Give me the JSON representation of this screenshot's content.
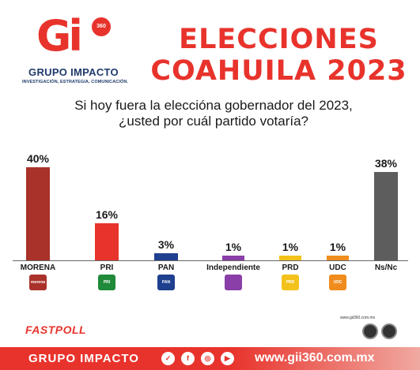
{
  "header": {
    "logo_text": "Gi",
    "logo_badge": "360",
    "logo_name": "GRUPO IMPACTO",
    "logo_tagline": "INVESTIGACIÓN, ESTRATEGIA, COMUNICACIÓN.",
    "title_line1": "ELECCIONES",
    "title_line2": "COAHUILA 2023"
  },
  "question_line1": "Si hoy fuera la elecciónа gobernador del 2023,",
  "question_line2": "¿usted por cuál partido votaría?",
  "chart_data": {
    "type": "bar",
    "categories": [
      "MORENA",
      "PRI",
      "PAN",
      "Independiente",
      "PRD",
      "UDC",
      "Ns/Nc"
    ],
    "values": [
      40,
      16,
      3,
      1,
      1,
      1,
      38
    ],
    "value_labels": [
      "40%",
      "16%",
      "3%",
      "1%",
      "1%",
      "1%",
      "38%"
    ],
    "colors": [
      "#a9322a",
      "#e8332c",
      "#1f3f8f",
      "#8a3fa8",
      "#f2c21a",
      "#f08c1e",
      "#5d5d5d"
    ],
    "ylim": [
      0,
      40
    ],
    "grid": false,
    "legend": "none"
  },
  "party_icons": [
    {
      "name": "morena-logo-icon",
      "label": "morena",
      "color": "#a9322a"
    },
    {
      "name": "pri-logo-icon",
      "label": "PRI",
      "color": "#1f8a3a"
    },
    {
      "name": "pan-logo-icon",
      "label": "PAN",
      "color": "#1f3f8f"
    },
    {
      "name": "independiente-logo-icon",
      "label": "",
      "color": "#8a3fa8"
    },
    {
      "name": "prd-logo-icon",
      "label": "PRD",
      "color": "#f2c21a"
    },
    {
      "name": "udc-logo-icon",
      "label": "UDC",
      "color": "#f08c1e"
    }
  ],
  "fastpoll": "FASTPOLL",
  "seal": {
    "url": "www.gii360.com.mx"
  },
  "footer": {
    "brand": "GRUPO IMPACTO",
    "social_icons": [
      "facebook-icon",
      "facebook-icon",
      "instagram-icon",
      "youtube-icon"
    ],
    "url": "www.gii360.com.mx"
  }
}
